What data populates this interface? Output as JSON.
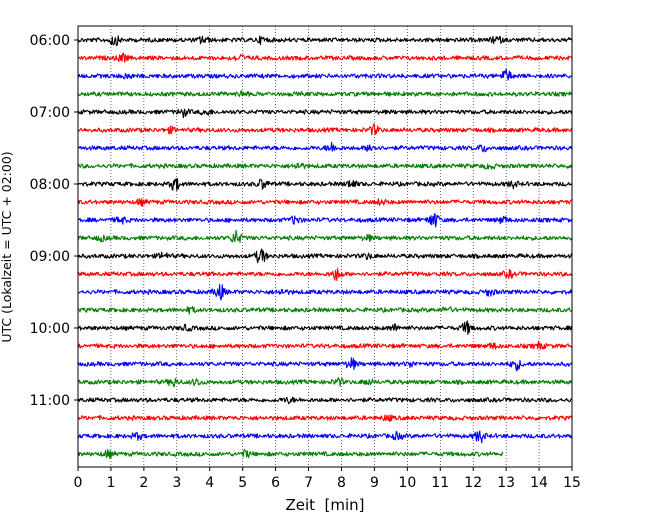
{
  "chart_data": {
    "type": "line",
    "title": "",
    "xlabel": "Zeit  [min]",
    "ylabel": "UTC (Lokalzeit = UTC + 02:00)",
    "xlim": [
      0,
      15
    ],
    "x_ticks": [
      "0",
      "1",
      "2",
      "3",
      "4",
      "5",
      "6",
      "7",
      "8",
      "9",
      "10",
      "11",
      "12",
      "13",
      "14",
      "15"
    ],
    "y_ticks": [
      "06:00",
      "07:00",
      "08:00",
      "09:00",
      "10:00",
      "11:00"
    ],
    "grid": "vertical dotted at each minute",
    "trace_interval_min": 15,
    "color_cycle": [
      "#000000",
      "#ff0000",
      "#0000ff",
      "#008000"
    ],
    "traces": [
      {
        "start": "06:00",
        "end_min": 15,
        "events": [
          [
            1.1,
            0.7
          ],
          [
            3.8,
            0.5
          ],
          [
            5.6,
            0.4
          ],
          [
            12.7,
            0.5
          ]
        ]
      },
      {
        "start": "06:15",
        "end_min": 15,
        "events": [
          [
            1.35,
            0.5
          ],
          [
            4.9,
            0.4
          ]
        ]
      },
      {
        "start": "06:30",
        "end_min": 15,
        "events": [
          [
            13.0,
            0.8
          ],
          [
            1.5,
            0.3
          ]
        ]
      },
      {
        "start": "06:45",
        "end_min": 15,
        "events": [
          [
            5.0,
            0.3
          ]
        ]
      },
      {
        "start": "07:00",
        "end_min": 15,
        "events": [
          [
            3.2,
            0.5
          ],
          [
            3.9,
            0.3
          ]
        ]
      },
      {
        "start": "07:15",
        "end_min": 15,
        "events": [
          [
            9.0,
            0.6
          ],
          [
            2.8,
            0.3
          ]
        ]
      },
      {
        "start": "07:30",
        "end_min": 15,
        "events": [
          [
            7.7,
            0.6
          ],
          [
            8.9,
            0.5
          ],
          [
            12.3,
            0.4
          ]
        ]
      },
      {
        "start": "07:45",
        "end_min": 15,
        "events": [
          [
            6.7,
            0.4
          ],
          [
            12.5,
            0.3
          ]
        ]
      },
      {
        "start": "08:00",
        "end_min": 15,
        "events": [
          [
            2.95,
            0.8
          ],
          [
            5.6,
            0.6
          ],
          [
            8.3,
            0.5
          ],
          [
            13.2,
            0.4
          ]
        ]
      },
      {
        "start": "08:15",
        "end_min": 15,
        "events": [
          [
            1.9,
            0.3
          ],
          [
            9.2,
            0.3
          ]
        ]
      },
      {
        "start": "08:30",
        "end_min": 15,
        "events": [
          [
            10.8,
            1.0
          ],
          [
            6.6,
            0.5
          ],
          [
            1.3,
            0.4
          ],
          [
            12.9,
            0.4
          ]
        ]
      },
      {
        "start": "08:45",
        "end_min": 15,
        "events": [
          [
            4.8,
            0.9
          ],
          [
            0.7,
            0.3
          ],
          [
            8.8,
            0.3
          ]
        ]
      },
      {
        "start": "09:00",
        "end_min": 15,
        "events": [
          [
            5.55,
            1.0
          ],
          [
            2.6,
            0.4
          ],
          [
            8.8,
            0.3
          ]
        ]
      },
      {
        "start": "09:15",
        "end_min": 15,
        "events": [
          [
            7.85,
            0.8
          ],
          [
            13.1,
            0.4
          ]
        ]
      },
      {
        "start": "09:30",
        "end_min": 15,
        "events": [
          [
            4.3,
            1.0
          ],
          [
            12.5,
            0.4
          ],
          [
            6.2,
            0.3
          ]
        ]
      },
      {
        "start": "09:45",
        "end_min": 15,
        "events": [
          [
            3.4,
            0.3
          ],
          [
            11.2,
            0.3
          ]
        ]
      },
      {
        "start": "10:00",
        "end_min": 15,
        "events": [
          [
            11.8,
            0.8
          ],
          [
            9.6,
            0.4
          ],
          [
            3.3,
            0.3
          ]
        ]
      },
      {
        "start": "10:15",
        "end_min": 15,
        "events": [
          [
            14.0,
            0.4
          ],
          [
            12.6,
            0.3
          ]
        ]
      },
      {
        "start": "10:30",
        "end_min": 15,
        "events": [
          [
            8.3,
            0.7
          ],
          [
            13.3,
            0.7
          ],
          [
            10.1,
            0.3
          ]
        ]
      },
      {
        "start": "10:45",
        "end_min": 15,
        "events": [
          [
            2.9,
            0.5
          ],
          [
            3.6,
            0.4
          ],
          [
            7.9,
            0.4
          ],
          [
            8.8,
            0.3
          ]
        ]
      },
      {
        "start": "11:00",
        "end_min": 15,
        "events": [
          [
            6.4,
            0.3
          ]
        ]
      },
      {
        "start": "11:15",
        "end_min": 15,
        "events": [
          [
            9.4,
            0.3
          ]
        ]
      },
      {
        "start": "11:30",
        "end_min": 15,
        "events": [
          [
            12.2,
            0.8
          ],
          [
            9.7,
            0.4
          ],
          [
            1.8,
            0.4
          ]
        ]
      },
      {
        "start": "11:45",
        "end_min": 12.9,
        "events": [
          [
            0.9,
            0.4
          ],
          [
            5.1,
            0.4
          ]
        ]
      }
    ]
  }
}
